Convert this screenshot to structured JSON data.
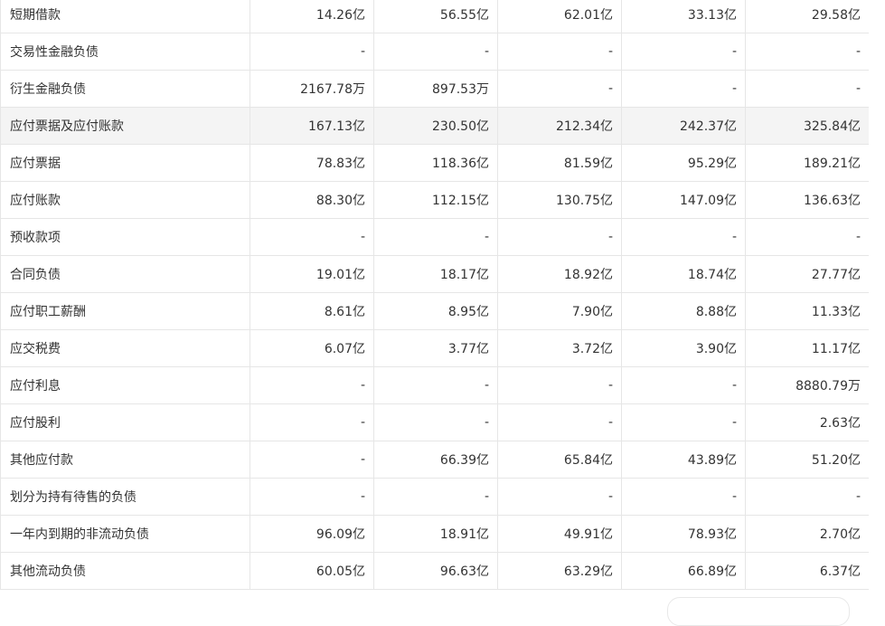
{
  "table": {
    "rows": [
      {
        "label": "短期借款",
        "values": [
          "14.26亿",
          "56.55亿",
          "62.01亿",
          "33.13亿",
          "29.58亿"
        ],
        "highlight": false
      },
      {
        "label": "交易性金融负债",
        "values": [
          "-",
          "-",
          "-",
          "-",
          "-"
        ],
        "highlight": false
      },
      {
        "label": "衍生金融负债",
        "values": [
          "2167.78万",
          "897.53万",
          "-",
          "-",
          "-"
        ],
        "highlight": false
      },
      {
        "label": "应付票据及应付账款",
        "values": [
          "167.13亿",
          "230.50亿",
          "212.34亿",
          "242.37亿",
          "325.84亿"
        ],
        "highlight": true
      },
      {
        "label": "应付票据",
        "values": [
          "78.83亿",
          "118.36亿",
          "81.59亿",
          "95.29亿",
          "189.21亿"
        ],
        "highlight": false
      },
      {
        "label": "应付账款",
        "values": [
          "88.30亿",
          "112.15亿",
          "130.75亿",
          "147.09亿",
          "136.63亿"
        ],
        "highlight": false
      },
      {
        "label": "预收款项",
        "values": [
          "-",
          "-",
          "-",
          "-",
          "-"
        ],
        "highlight": false
      },
      {
        "label": "合同负债",
        "values": [
          "19.01亿",
          "18.17亿",
          "18.92亿",
          "18.74亿",
          "27.77亿"
        ],
        "highlight": false
      },
      {
        "label": "应付职工薪酬",
        "values": [
          "8.61亿",
          "8.95亿",
          "7.90亿",
          "8.88亿",
          "11.33亿"
        ],
        "highlight": false
      },
      {
        "label": "应交税费",
        "values": [
          "6.07亿",
          "3.77亿",
          "3.72亿",
          "3.90亿",
          "11.17亿"
        ],
        "highlight": false
      },
      {
        "label": "应付利息",
        "values": [
          "-",
          "-",
          "-",
          "-",
          "8880.79万"
        ],
        "highlight": false
      },
      {
        "label": "应付股利",
        "values": [
          "-",
          "-",
          "-",
          "-",
          "2.63亿"
        ],
        "highlight": false
      },
      {
        "label": "其他应付款",
        "values": [
          "-",
          "66.39亿",
          "65.84亿",
          "43.89亿",
          "51.20亿"
        ],
        "highlight": false
      },
      {
        "label": "划分为持有待售的负债",
        "values": [
          "-",
          "-",
          "-",
          "-",
          "-"
        ],
        "highlight": false
      },
      {
        "label": "一年内到期的非流动负债",
        "values": [
          "96.09亿",
          "18.91亿",
          "49.91亿",
          "78.93亿",
          "2.70亿"
        ],
        "highlight": false
      },
      {
        "label": "其他流动负债",
        "values": [
          "60.05亿",
          "96.63亿",
          "63.29亿",
          "66.89亿",
          "6.37亿"
        ],
        "highlight": false
      }
    ]
  },
  "colors": {
    "border": "#e6e6e6",
    "highlight_row": "#f4f4f4",
    "text": "#333333"
  }
}
